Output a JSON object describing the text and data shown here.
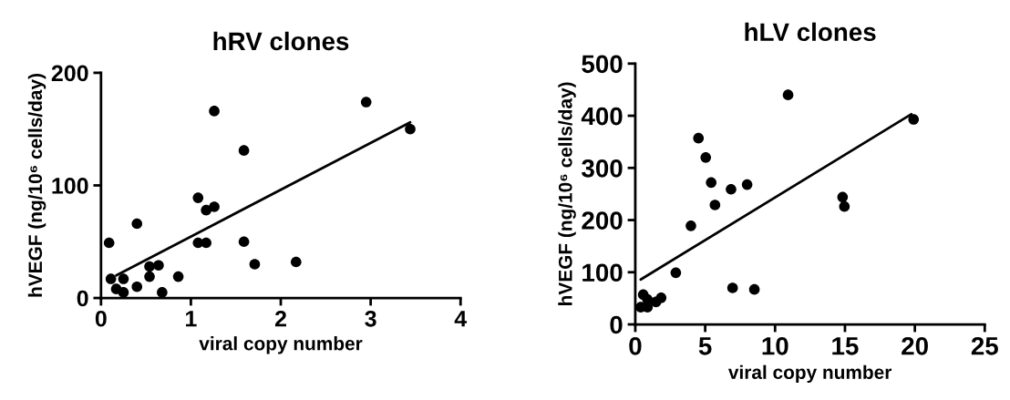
{
  "chart_data": [
    {
      "type": "scatter",
      "title": "hRV clones",
      "xlabel": "viral copy number",
      "ylabel": "hVEGF (ng/10⁶ cells/day)",
      "xlim": [
        0,
        4
      ],
      "ylim": [
        0,
        200
      ],
      "xticks": [
        0,
        1,
        2,
        3,
        4
      ],
      "yticks": [
        0,
        100,
        200
      ],
      "grid": false,
      "legend": false,
      "series": [
        {
          "marker": "circle",
          "color": "#000000",
          "x": [
            0.09,
            0.11,
            0.17,
            0.25,
            0.25,
            0.4,
            0.4,
            0.54,
            0.54,
            0.64,
            0.68,
            0.86,
            1.08,
            1.08,
            1.17,
            1.17,
            1.26,
            1.26,
            1.59,
            1.59,
            1.71,
            2.17,
            2.95,
            3.44
          ],
          "values": [
            49,
            17,
            8,
            17,
            5,
            66,
            10,
            28,
            19,
            29,
            5,
            19,
            89,
            49,
            78,
            49,
            81,
            166,
            131,
            50,
            30,
            32,
            174,
            150
          ]
        },
        {
          "type": "line",
          "color": "#000000",
          "x": [
            0.17,
            3.44
          ],
          "values": [
            20,
            156
          ]
        }
      ]
    },
    {
      "type": "scatter",
      "title": "hLV clones",
      "xlabel": "viral copy number",
      "ylabel": "hVEGF (ng/10⁶ cells/day)",
      "xlim": [
        0,
        25
      ],
      "ylim": [
        0,
        500
      ],
      "xticks": [
        0,
        5,
        10,
        15,
        20,
        25
      ],
      "yticks": [
        0,
        100,
        200,
        300,
        400,
        500
      ],
      "grid": false,
      "legend": false,
      "series": [
        {
          "marker": "circle",
          "color": "#000000",
          "x": [
            0.39,
            0.57,
            0.87,
            0.87,
            1.48,
            1.85,
            2.9,
            3.98,
            4.52,
            5.04,
            5.43,
            5.7,
            6.85,
            6.96,
            8.0,
            8.52,
            10.93,
            14.83,
            14.96,
            19.91
          ],
          "values": [
            33,
            57,
            48,
            33,
            43,
            51,
            99,
            189,
            357,
            320,
            272,
            229,
            259,
            70,
            268,
            67,
            440,
            244,
            226,
            393
          ]
        },
        {
          "type": "line",
          "color": "#000000",
          "x": [
            0.39,
            19.74
          ],
          "values": [
            86,
            403
          ]
        }
      ]
    }
  ]
}
